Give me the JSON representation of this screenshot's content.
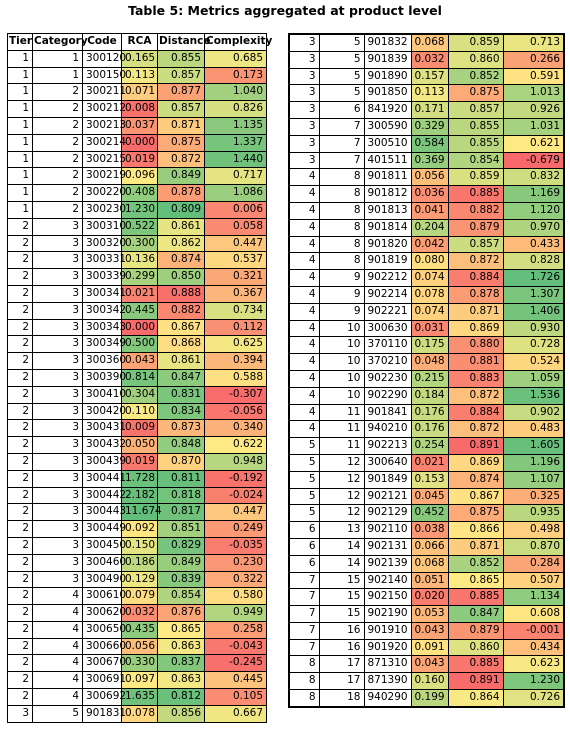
{
  "title": "Table 5: Metrics aggregated at product level",
  "color_scale": {
    "low": "#F8696B",
    "mid": "#FFEB84",
    "high": "#63BE7B"
  },
  "left_table": {
    "header": [
      "Tier",
      "Category",
      "Code",
      "RCA",
      "Distance",
      "Complexity"
    ],
    "rows": [
      [
        1,
        1,
        "300120",
        "0.165",
        "0.855",
        "0.685"
      ],
      [
        1,
        1,
        "300150",
        "0.113",
        "0.857",
        "0.173"
      ],
      [
        1,
        2,
        "300211",
        "0.071",
        "0.877",
        "1.040"
      ],
      [
        1,
        2,
        "300212",
        "0.008",
        "0.857",
        "0.826"
      ],
      [
        1,
        2,
        "300213",
        "0.037",
        "0.871",
        "1.135"
      ],
      [
        1,
        2,
        "300214",
        "0.000",
        "0.875",
        "1.337"
      ],
      [
        1,
        2,
        "300215",
        "0.019",
        "0.872",
        "1.440"
      ],
      [
        1,
        2,
        "300219",
        "0.096",
        "0.849",
        "0.717"
      ],
      [
        1,
        2,
        "300220",
        "0.408",
        "0.878",
        "1.086"
      ],
      [
        1,
        2,
        "300230",
        "1.230",
        "0.809",
        "0.006"
      ],
      [
        2,
        3,
        "300310",
        "0.522",
        "0.861",
        "0.058"
      ],
      [
        2,
        3,
        "300320",
        "0.300",
        "0.862",
        "0.447"
      ],
      [
        2,
        3,
        "300331",
        "0.136",
        "0.874",
        "0.537"
      ],
      [
        2,
        3,
        "300339",
        "0.299",
        "0.850",
        "0.321"
      ],
      [
        2,
        3,
        "300341",
        "0.021",
        "0.888",
        "0.367"
      ],
      [
        2,
        3,
        "300342",
        "0.445",
        "0.882",
        "0.734"
      ],
      [
        2,
        3,
        "300343",
        "0.000",
        "0.867",
        "0.112"
      ],
      [
        2,
        3,
        "300349",
        "0.500",
        "0.868",
        "0.625"
      ],
      [
        2,
        3,
        "300360",
        "0.043",
        "0.861",
        "0.394"
      ],
      [
        2,
        3,
        "300390",
        "0.814",
        "0.847",
        "0.588"
      ],
      [
        2,
        3,
        "300410",
        "0.304",
        "0.831",
        "-0.307"
      ],
      [
        2,
        3,
        "300420",
        "0.110",
        "0.834",
        "-0.056"
      ],
      [
        2,
        3,
        "300431",
        "0.009",
        "0.873",
        "0.340"
      ],
      [
        2,
        3,
        "300432",
        "0.050",
        "0.848",
        "0.622"
      ],
      [
        2,
        3,
        "300439",
        "0.019",
        "0.870",
        "0.948"
      ],
      [
        2,
        3,
        "300441",
        "1.728",
        "0.811",
        "-0.192"
      ],
      [
        2,
        3,
        "300442",
        "2.182",
        "0.818",
        "-0.024"
      ],
      [
        2,
        3,
        "300443",
        "11.674",
        "0.817",
        "0.447"
      ],
      [
        2,
        3,
        "300449",
        "0.092",
        "0.851",
        "0.249"
      ],
      [
        2,
        3,
        "300450",
        "0.150",
        "0.829",
        "-0.035"
      ],
      [
        2,
        3,
        "300460",
        "0.186",
        "0.849",
        "0.230"
      ],
      [
        2,
        3,
        "300490",
        "0.129",
        "0.839",
        "0.322"
      ],
      [
        2,
        4,
        "300610",
        "0.079",
        "0.854",
        "0.580"
      ],
      [
        2,
        4,
        "300620",
        "0.032",
        "0.876",
        "0.949"
      ],
      [
        2,
        4,
        "300650",
        "0.435",
        "0.865",
        "0.258"
      ],
      [
        2,
        4,
        "300660",
        "0.056",
        "0.863",
        "-0.043"
      ],
      [
        2,
        4,
        "300670",
        "0.330",
        "0.837",
        "-0.245"
      ],
      [
        2,
        4,
        "300691",
        "0.097",
        "0.863",
        "0.445"
      ],
      [
        2,
        4,
        "300692",
        "1.635",
        "0.812",
        "0.105"
      ],
      [
        3,
        5,
        "901831",
        "0.078",
        "0.856",
        "0.667"
      ]
    ]
  },
  "right_table": {
    "rows": [
      [
        3,
        5,
        "901832",
        "0.068",
        "0.859",
        "0.713"
      ],
      [
        3,
        5,
        "901839",
        "0.032",
        "0.860",
        "0.266"
      ],
      [
        3,
        5,
        "901890",
        "0.157",
        "0.852",
        "0.591"
      ],
      [
        3,
        5,
        "901850",
        "0.113",
        "0.875",
        "1.013"
      ],
      [
        3,
        6,
        "841920",
        "0.171",
        "0.857",
        "0.926"
      ],
      [
        3,
        7,
        "300590",
        "0.329",
        "0.855",
        "1.031"
      ],
      [
        3,
        7,
        "300510",
        "0.584",
        "0.855",
        "0.621"
      ],
      [
        3,
        7,
        "401511",
        "0.369",
        "0.854",
        "-0.679"
      ],
      [
        4,
        8,
        "901811",
        "0.056",
        "0.859",
        "0.832"
      ],
      [
        4,
        8,
        "901812",
        "0.036",
        "0.885",
        "1.169"
      ],
      [
        4,
        8,
        "901813",
        "0.041",
        "0.882",
        "1.120"
      ],
      [
        4,
        8,
        "901814",
        "0.204",
        "0.879",
        "0.970"
      ],
      [
        4,
        8,
        "901820",
        "0.042",
        "0.857",
        "0.433"
      ],
      [
        4,
        8,
        "901819",
        "0.080",
        "0.872",
        "0.828"
      ],
      [
        4,
        9,
        "902212",
        "0.074",
        "0.884",
        "1.726"
      ],
      [
        4,
        9,
        "902214",
        "0.078",
        "0.878",
        "1.307"
      ],
      [
        4,
        9,
        "902221",
        "0.074",
        "0.871",
        "1.406"
      ],
      [
        4,
        10,
        "300630",
        "0.031",
        "0.869",
        "0.930"
      ],
      [
        4,
        10,
        "370110",
        "0.175",
        "0.880",
        "0.728"
      ],
      [
        4,
        10,
        "370210",
        "0.048",
        "0.881",
        "0.524"
      ],
      [
        4,
        10,
        "902230",
        "0.215",
        "0.883",
        "1.059"
      ],
      [
        4,
        10,
        "902290",
        "0.184",
        "0.872",
        "1.536"
      ],
      [
        4,
        11,
        "901841",
        "0.176",
        "0.884",
        "0.902"
      ],
      [
        4,
        11,
        "940210",
        "0.176",
        "0.872",
        "0.483"
      ],
      [
        5,
        11,
        "902213",
        "0.254",
        "0.891",
        "1.605"
      ],
      [
        5,
        12,
        "300640",
        "0.021",
        "0.869",
        "1.196"
      ],
      [
        5,
        12,
        "901849",
        "0.153",
        "0.874",
        "1.107"
      ],
      [
        5,
        12,
        "902121",
        "0.045",
        "0.867",
        "0.325"
      ],
      [
        5,
        12,
        "902129",
        "0.452",
        "0.875",
        "0.935"
      ],
      [
        6,
        13,
        "902110",
        "0.038",
        "0.866",
        "0.498"
      ],
      [
        6,
        14,
        "902131",
        "0.066",
        "0.871",
        "0.870"
      ],
      [
        6,
        14,
        "902139",
        "0.068",
        "0.852",
        "0.284"
      ],
      [
        7,
        15,
        "902140",
        "0.051",
        "0.865",
        "0.507"
      ],
      [
        7,
        15,
        "902150",
        "0.020",
        "0.885",
        "1.134"
      ],
      [
        7,
        15,
        "902190",
        "0.053",
        "0.847",
        "0.608"
      ],
      [
        7,
        16,
        "901910",
        "0.043",
        "0.879",
        "-0.001"
      ],
      [
        7,
        16,
        "901920",
        "0.091",
        "0.860",
        "0.434"
      ],
      [
        8,
        17,
        "871310",
        "0.043",
        "0.885",
        "0.623"
      ],
      [
        8,
        17,
        "871390",
        "0.160",
        "0.891",
        "1.230"
      ],
      [
        8,
        18,
        "940290",
        "0.199",
        "0.864",
        "0.726"
      ]
    ]
  }
}
